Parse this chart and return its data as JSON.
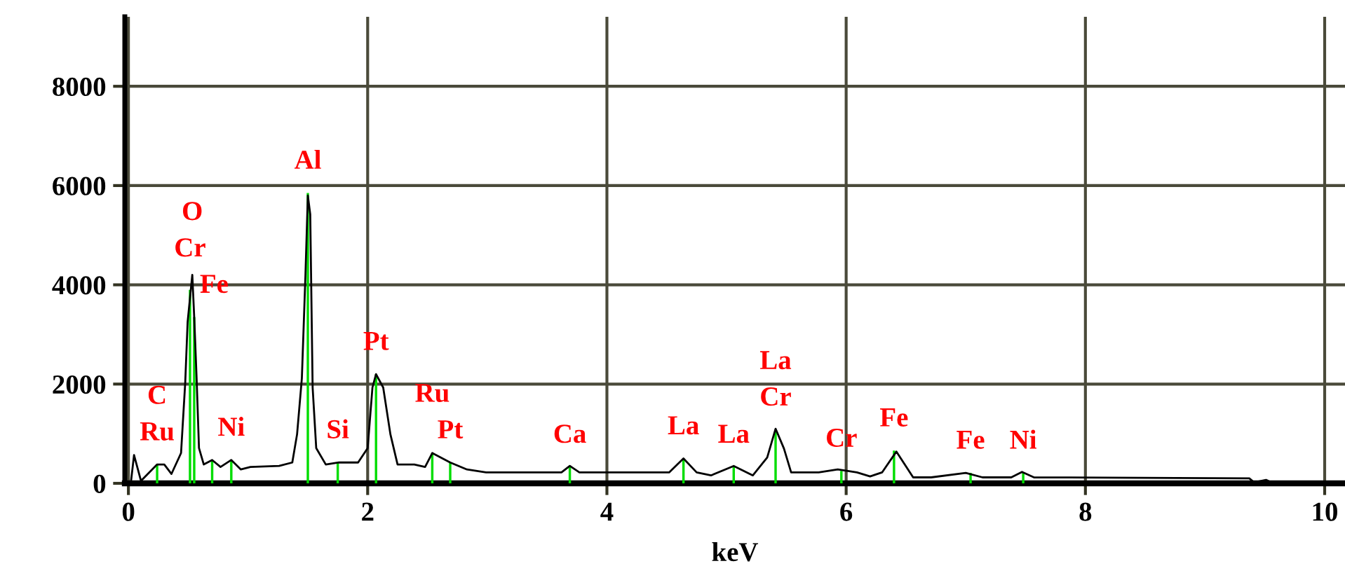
{
  "chart_data": {
    "type": "line",
    "xlabel": "keV",
    "xlim": [
      -0.03,
      10.17
    ],
    "ylim": [
      0,
      9400
    ],
    "xticks": [
      0,
      2,
      4,
      6,
      8,
      10
    ],
    "yticks": [
      0,
      2000,
      4000,
      6000,
      8000
    ],
    "grid": true,
    "series": [
      {
        "color": "#000000",
        "x": [
          0.02,
          0.047,
          0.105,
          0.24,
          0.3,
          0.36,
          0.44,
          0.475,
          0.495,
          0.534,
          0.55,
          0.57,
          0.59,
          0.63,
          0.7,
          0.77,
          0.86,
          0.94,
          1.02,
          1.26,
          1.37,
          1.41,
          1.45,
          1.48,
          1.5,
          1.52,
          1.54,
          1.57,
          1.65,
          1.76,
          1.92,
          2.0,
          2.04,
          2.07,
          2.13,
          2.19,
          2.25,
          2.39,
          2.48,
          2.54,
          2.69,
          2.83,
          2.99,
          3.18,
          3.62,
          3.69,
          3.77,
          4.52,
          4.64,
          4.75,
          4.87,
          5.06,
          5.22,
          5.34,
          5.41,
          5.48,
          5.54,
          5.77,
          5.93,
          6.09,
          6.2,
          6.3,
          6.42,
          6.56,
          6.71,
          7.0,
          7.14,
          7.38,
          7.47,
          7.57,
          9.37,
          9.41,
          9.51,
          9.57,
          10.17
        ],
        "values": [
          0,
          570,
          50,
          380,
          380,
          190,
          610,
          2030,
          3250,
          4200,
          3350,
          2120,
          710,
          380,
          470,
          330,
          470,
          280,
          330,
          350,
          420,
          990,
          2120,
          4200,
          5800,
          5420,
          1930,
          710,
          380,
          420,
          420,
          710,
          1930,
          2200,
          1930,
          990,
          380,
          380,
          330,
          610,
          420,
          280,
          220,
          220,
          220,
          350,
          220,
          220,
          500,
          220,
          160,
          350,
          160,
          520,
          1100,
          700,
          220,
          220,
          280,
          220,
          140,
          220,
          640,
          120,
          120,
          210,
          120,
          120,
          230,
          120,
          100,
          20,
          70,
          0,
          0
        ]
      },
      {
        "type": "bar",
        "color": "#00dd00",
        "x": [
          0.24,
          0.515,
          0.55,
          0.7,
          0.86,
          1.5,
          1.75,
          2.07,
          2.54,
          2.69,
          3.69,
          4.64,
          5.06,
          5.41,
          5.96,
          6.4,
          7.04,
          7.48
        ],
        "values": [
          380,
          3900,
          3350,
          470,
          470,
          5850,
          420,
          2200,
          610,
          420,
          330,
          500,
          330,
          1080,
          250,
          660,
          210,
          210
        ]
      }
    ],
    "annotations": [
      {
        "text": "C",
        "x": 0.24,
        "y": 380
      },
      {
        "text": "Ru",
        "x": 0.24,
        "y": 380
      },
      {
        "text": "O",
        "x": 0.534,
        "y": 4200
      },
      {
        "text": "Cr",
        "x": 0.515,
        "y": 3900
      },
      {
        "text": "Fe",
        "x": 0.55,
        "y": 3350
      },
      {
        "text": "Ni",
        "x": 0.86,
        "y": 470
      },
      {
        "text": "Al",
        "x": 1.5,
        "y": 5850
      },
      {
        "text": "Si",
        "x": 1.75,
        "y": 420
      },
      {
        "text": "Pt",
        "x": 2.07,
        "y": 2200
      },
      {
        "text": "Ru",
        "x": 2.54,
        "y": 610
      },
      {
        "text": "Pt",
        "x": 2.69,
        "y": 420
      },
      {
        "text": "Ca",
        "x": 3.69,
        "y": 330
      },
      {
        "text": "La",
        "x": 4.64,
        "y": 500
      },
      {
        "text": "La",
        "x": 5.06,
        "y": 330
      },
      {
        "text": "La",
        "x": 5.41,
        "y": 1080
      },
      {
        "text": "Cr",
        "x": 5.41,
        "y": 1080
      },
      {
        "text": "Cr",
        "x": 5.96,
        "y": 250
      },
      {
        "text": "Fe",
        "x": 6.4,
        "y": 660
      },
      {
        "text": "Fe",
        "x": 7.04,
        "y": 210
      },
      {
        "text": "Ni",
        "x": 7.48,
        "y": 210
      }
    ]
  }
}
